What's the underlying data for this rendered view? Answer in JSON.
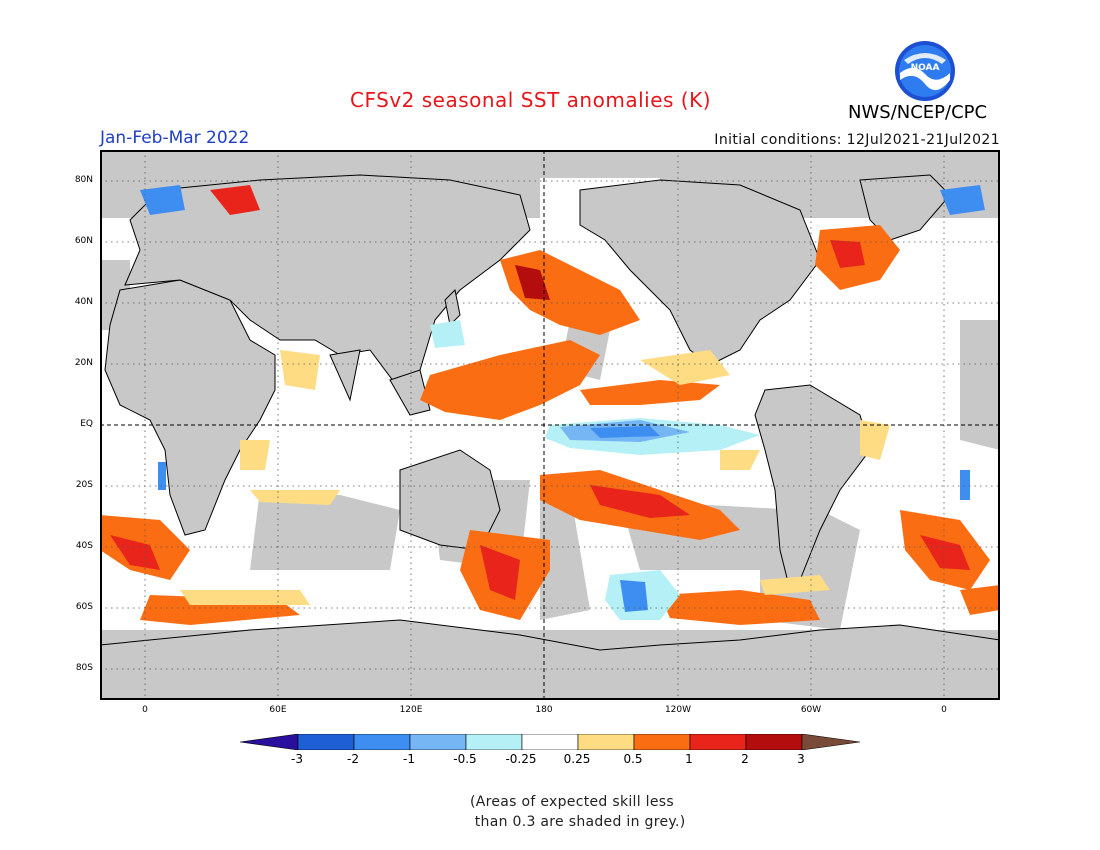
{
  "title": "CFSv2 seasonal SST anomalies (K)",
  "agency": "NWS/NCEP/CPC",
  "season": "Jan-Feb-Mar 2022",
  "initial_conditions": "Initial conditions: 12Jul2021-21Jul2021",
  "logo_text": "NOAA",
  "map": {
    "lat_ticks": [
      "80N",
      "60N",
      "40N",
      "20N",
      "EQ",
      "20S",
      "40S",
      "60S",
      "80S"
    ],
    "lon_ticks": [
      "0",
      "60E",
      "120E",
      "180",
      "120W",
      "60W",
      "0"
    ],
    "colors": {
      "land": "#c8c8c8",
      "ocean_neutral": "#ffffff",
      "grid": "#555555"
    }
  },
  "colorbar": {
    "labels": [
      "-3",
      "-2",
      "-1",
      "-0.5",
      "-0.25",
      "0.25",
      "0.5",
      "1",
      "2",
      "3"
    ],
    "colors": [
      "#2a0f9e",
      "#1f5fd6",
      "#3d8ef0",
      "#76b6f5",
      "#b4f0f5",
      "#ffffff",
      "#fddc84",
      "#fb6d12",
      "#e8241b",
      "#b30d0d",
      "#7a4a38"
    ]
  },
  "footnote": "(Areas of expected skill less\n than 0.3 are shaded in grey.)"
}
